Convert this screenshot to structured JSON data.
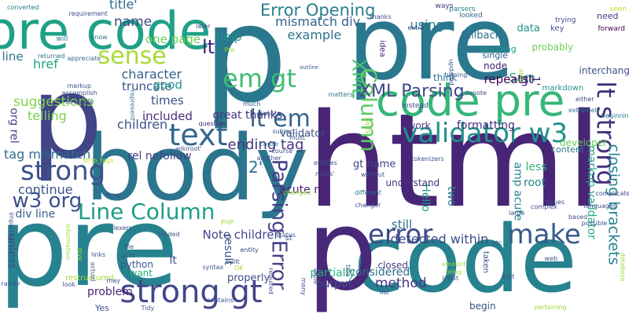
{
  "cloud": {
    "background": "#ffffff",
    "words": [
      {
        "text": "p",
        "color": "#2a788e"
      },
      {
        "text": "pre",
        "color": "#2a788e"
      },
      {
        "text": "html",
        "color": "#482576"
      },
      {
        "text": "body",
        "color": "#2b758e"
      },
      {
        "text": "pre",
        "color": "#26828e"
      },
      {
        "text": "code",
        "color": "#26828e"
      },
      {
        "text": "p",
        "color": "#482878"
      },
      {
        "text": "p",
        "color": "#414487"
      },
      {
        "text": "pre code",
        "color": "#1fa187"
      },
      {
        "text": "code pre",
        "color": "#35b779"
      },
      {
        "text": "strong",
        "color": "#3b528b"
      },
      {
        "text": "text",
        "color": "#31688e"
      },
      {
        "text": "validator w3",
        "color": "#21918c"
      },
      {
        "text": "lt strong",
        "color": "#46307e"
      },
      {
        "text": "error",
        "color": "#3e4a89"
      },
      {
        "text": "make",
        "color": "#38598c"
      },
      {
        "text": "strong gt",
        "color": "#404688"
      },
      {
        "text": "em gt",
        "color": "#3fbc73"
      },
      {
        "text": "sense",
        "color": "#a8db34"
      },
      {
        "text": "lt em",
        "color": "#33638d"
      },
      {
        "text": "w3 org",
        "color": "#3b528b"
      },
      {
        "text": "Line Column",
        "color": "#1f9e89"
      },
      {
        "text": "XML",
        "color": "#4ac16d"
      },
      {
        "text": "Column",
        "color": "#5ec962"
      },
      {
        "text": "Parsing Error",
        "color": "#433e85"
      },
      {
        "text": "Error Opening",
        "color": "#287d8e"
      },
      {
        "text": "mismatch div",
        "color": "#34618d"
      },
      {
        "text": "example",
        "color": "#2c728e"
      },
      {
        "text": "ending tag",
        "color": "#453781"
      },
      {
        "text": "XML Parsing",
        "color": "#3e4989"
      },
      {
        "text": "2'",
        "color": "#2d708e"
      },
      {
        "text": "closing brackets",
        "color": "#25858e"
      },
      {
        "text": "markup validator",
        "color": "#22a785"
      },
      {
        "text": "suggestions",
        "color": "#84d44b"
      },
      {
        "text": "character",
        "color": "#355f8d"
      },
      {
        "text": "lt",
        "color": "#482173"
      },
      {
        "text": "name",
        "color": "#3f4788"
      },
      {
        "text": "title'",
        "color": "#2e6d8e"
      },
      {
        "text": "one page",
        "color": "#6ece58"
      },
      {
        "text": "using",
        "color": "#297b8e"
      },
      {
        "text": "Sam",
        "color": "#1fa088"
      },
      {
        "text": "repeats",
        "color": "#440154"
      },
      {
        "text": "1'",
        "color": "#481b6d"
      },
      {
        "text": "gt",
        "color": "#482475"
      },
      {
        "text": "help",
        "color": "#21918c"
      },
      {
        "text": "href",
        "color": "#20a486"
      },
      {
        "text": "line",
        "color": "#2a778e"
      },
      {
        "text": "telling",
        "color": "#7ad151"
      },
      {
        "text": "truncate",
        "color": "#3a548c"
      },
      {
        "text": "good",
        "color": "#1f968b"
      },
      {
        "text": "times",
        "color": "#3d4e8a"
      },
      {
        "text": "included",
        "color": "#472f7d"
      },
      {
        "text": "children",
        "color": "#3b528b"
      },
      {
        "text": "org rel",
        "color": "#414487"
      },
      {
        "text": "tag mismatch",
        "color": "#2e6e8e"
      },
      {
        "text": "rel nofollow",
        "color": "#424086"
      },
      {
        "text": "great thanks",
        "color": "#46337f"
      },
      {
        "text": "continue",
        "color": "#3a538b"
      },
      {
        "text": "div line",
        "color": "#365d8d"
      },
      {
        "text": "acute m",
        "color": "#482071"
      },
      {
        "text": "Hello",
        "color": "#1e9c89"
      },
      {
        "text": "two",
        "color": "#297a8e"
      },
      {
        "text": "amp acute",
        "color": "#25848e"
      },
      {
        "text": "root",
        "color": "#23898e"
      },
      {
        "text": "less",
        "color": "#31b57b"
      },
      {
        "text": "still",
        "color": "#2e6f8e"
      },
      {
        "text": "detected within",
        "color": "#3d4d8a"
      },
      {
        "text": "Note children'",
        "color": "#404588"
      },
      {
        "text": "result",
        "color": "#3b518b"
      },
      {
        "text": "lt",
        "color": "#3e4a89"
      },
      {
        "text": "method",
        "color": "#453882"
      },
      {
        "text": "closed",
        "color": "#433d84"
      },
      {
        "text": "considered",
        "color": "#2d708e"
      },
      {
        "text": "partially",
        "color": "#26ad81"
      },
      {
        "text": "output",
        "color": "#3d4d8a"
      },
      {
        "text": "unless",
        "color": "#3f4889"
      },
      {
        "text": "validator",
        "color": "#3b528b"
      },
      {
        "text": "python",
        "color": "#39568c"
      },
      {
        "text": "want",
        "color": "#25ab82"
      },
      {
        "text": "problem",
        "color": "#482576"
      },
      {
        "text": "properly",
        "color": "#3e4a89"
      },
      {
        "text": "gt name",
        "color": "#414487"
      },
      {
        "text": "understand",
        "color": "#46327e"
      },
      {
        "text": "developer",
        "color": "#65cb5e"
      },
      {
        "text": "content",
        "color": "#297b8e"
      },
      {
        "text": "work",
        "color": "#46337f"
      },
      {
        "text": "formatting",
        "color": "#472d7b"
      },
      {
        "text": "data",
        "color": "#21918c"
      },
      {
        "text": "think",
        "color": "#2b758e"
      },
      {
        "text": "node",
        "color": "#482071"
      },
      {
        "text": "probably",
        "color": "#6ece58"
      },
      {
        "text": "fallback",
        "color": "#2e6e8e"
      },
      {
        "text": "stopping",
        "color": "#1f998a"
      },
      {
        "text": "single",
        "color": "#33638d"
      },
      {
        "text": "interchanged",
        "color": "#3b528b"
      },
      {
        "text": "need",
        "color": "#453781"
      },
      {
        "text": "forward",
        "color": "#440154"
      },
      {
        "text": "markdown",
        "color": "#21918c"
      },
      {
        "text": "trying",
        "color": "#3e4989"
      },
      {
        "text": "key",
        "color": "#3b528b"
      },
      {
        "text": "seen",
        "color": "#bddf26"
      },
      {
        "text": "parsers",
        "color": "#2a788e"
      },
      {
        "text": "looked",
        "color": "#31688e"
      },
      {
        "text": "ways",
        "color": "#46307e"
      },
      {
        "text": "converted",
        "color": "#2a788e"
      },
      {
        "text": "requirement",
        "color": "#3e4a89"
      },
      {
        "text": "extra",
        "color": "#404688"
      },
      {
        "text": "thanks",
        "color": "#3e4989"
      },
      {
        "text": "idea",
        "color": "#482475"
      },
      {
        "text": "will",
        "color": "#2c728e"
      },
      {
        "text": "returned",
        "color": "#2c728e"
      },
      {
        "text": "appreciate",
        "color": "#31688e"
      },
      {
        "text": "know",
        "color": "#2c728e"
      },
      {
        "text": "later",
        "color": "#3e4989"
      },
      {
        "text": "Pre",
        "color": "#9fda3a"
      },
      {
        "text": "outline",
        "color": "#3b528b"
      },
      {
        "text": "turning",
        "color": "#3b528b"
      },
      {
        "text": "updated",
        "color": "#3b528b"
      },
      {
        "text": "able",
        "color": "#a0da39"
      },
      {
        "text": "either",
        "color": "#3e4989"
      },
      {
        "text": "extremely",
        "color": "#2a788e"
      },
      {
        "text": "beginning",
        "color": "#2a788e"
      },
      {
        "text": "markup",
        "color": "#3b528b"
      },
      {
        "text": "accomplish",
        "color": "#3b528b"
      },
      {
        "text": "structure",
        "color": "#3b528b"
      },
      {
        "text": "represent",
        "color": "#2a788e"
      },
      {
        "text": "much",
        "color": "#3b528b"
      },
      {
        "text": "substr",
        "color": "#3e4989"
      },
      {
        "text": "matters",
        "color": "#2a788e"
      },
      {
        "text": "denote",
        "color": "#3e4989"
      },
      {
        "text": "instead",
        "color": "#3e4989"
      },
      {
        "text": "question",
        "color": "#482475"
      },
      {
        "text": "subject",
        "color": "#3b528b"
      },
      {
        "text": "must",
        "color": "#3b528b"
      },
      {
        "text": "wikiroot'",
        "color": "#3b528b"
      },
      {
        "text": "another",
        "color": "#3e4989"
      },
      {
        "text": "cause",
        "color": "#2a788e"
      },
      {
        "text": "strip_tags",
        "color": "#bddf26"
      },
      {
        "text": "course",
        "color": "#3b528b"
      },
      {
        "text": "entities",
        "color": "#3b528b"
      },
      {
        "text": "notes'",
        "color": "#3e4989"
      },
      {
        "text": "without",
        "color": "#3b528b"
      },
      {
        "text": "tokenizers",
        "color": "#3b528b"
      },
      {
        "text": "parts",
        "color": "#a0da39"
      },
      {
        "text": "changed",
        "color": "#a0da39"
      },
      {
        "text": "different",
        "color": "#2a788e"
      },
      {
        "text": "changer",
        "color": "#3e4989"
      },
      {
        "text": "complex",
        "color": "#3e4989"
      },
      {
        "text": "issues",
        "color": "#3b528b"
      },
      {
        "text": "languages",
        "color": "#3b528b"
      },
      {
        "text": "based",
        "color": "#3b528b"
      },
      {
        "text": "complicated",
        "color": "#3e4989"
      },
      {
        "text": "possible",
        "color": "#3b528b"
      },
      {
        "text": "large",
        "color": "#3b528b"
      },
      {
        "text": "PHP",
        "color": "#a0da39"
      },
      {
        "text": "status",
        "color": "#3b528b"
      },
      {
        "text": "lexers",
        "color": "#3b528b"
      },
      {
        "text": "loaded",
        "color": "#3b528b"
      },
      {
        "text": "etc",
        "color": "#3b528b"
      },
      {
        "text": "web",
        "color": "#3b528b"
      },
      {
        "text": "taken",
        "color": "#3b528b"
      },
      {
        "text": "database",
        "color": "#a0da39"
      },
      {
        "text": "pertaining",
        "color": "#a0da39"
      },
      {
        "text": "Edit",
        "color": "#3b528b"
      },
      {
        "text": "amount",
        "color": "#a0da39"
      },
      {
        "text": "bring",
        "color": "#a0da39"
      },
      {
        "text": "input",
        "color": "#3b528b"
      },
      {
        "text": "title",
        "color": "#3b528b"
      },
      {
        "text": "begin",
        "color": "#3b528b"
      },
      {
        "text": "list",
        "color": "#3b528b"
      },
      {
        "text": "table",
        "color": "#3b528b"
      },
      {
        "text": "many",
        "color": "#3b528b"
      },
      {
        "text": "required",
        "color": "#3b528b"
      },
      {
        "text": "entity",
        "color": "#3e4989"
      },
      {
        "text": "built",
        "color": "#3b528b"
      },
      {
        "text": "OK",
        "color": "#a0da39"
      },
      {
        "text": "syntax",
        "color": "#3b528b"
      },
      {
        "text": "contains",
        "color": "#3b528b"
      },
      {
        "text": "restructured",
        "color": "#a0da39"
      },
      {
        "text": "Yes",
        "color": "#3b528b"
      },
      {
        "text": "Tidy",
        "color": "#3b528b"
      },
      {
        "text": "rather",
        "color": "#3b528b"
      },
      {
        "text": "links",
        "color": "#3b528b"
      },
      {
        "text": "port",
        "color": "#3b528b"
      },
      {
        "text": "file",
        "color": "#3b528b"
      },
      {
        "text": "actual",
        "color": "#3b528b"
      },
      {
        "text": "look",
        "color": "#3b528b"
      },
      {
        "text": "may",
        "color": "#3b528b"
      },
      {
        "text": "give",
        "color": "#a0da39"
      },
      {
        "text": "information",
        "color": "#a0da39"
      },
      {
        "text": "important",
        "color": "#3b528b"
      },
      {
        "text": "st",
        "color": "#3b528b"
      },
      {
        "text": "now",
        "color": "#3b528b"
      },
      {
        "text": "C",
        "color": "#3b528b"
      },
      {
        "text": "3'",
        "color": "#3b528b"
      },
      {
        "text": "see",
        "color": "#3b528b"
      }
    ]
  }
}
